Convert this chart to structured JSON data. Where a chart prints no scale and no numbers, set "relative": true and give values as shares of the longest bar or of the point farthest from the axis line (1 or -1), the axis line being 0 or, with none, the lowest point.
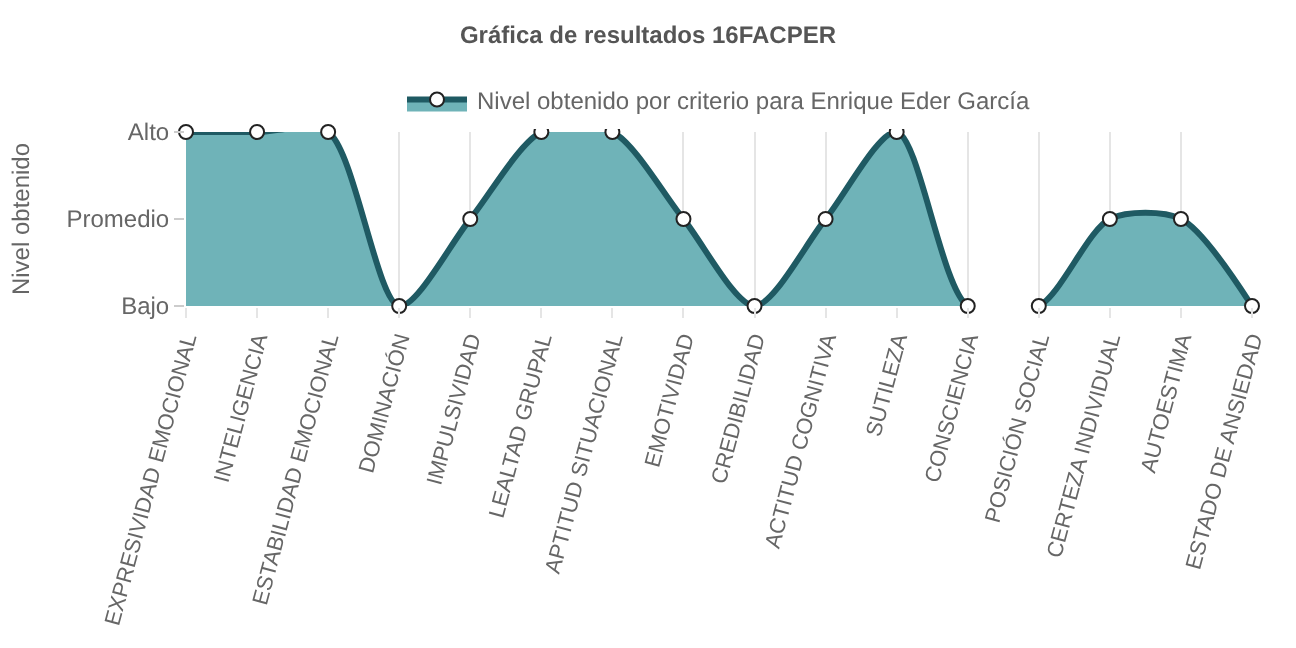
{
  "chart_data": {
    "type": "area",
    "title": "Gráfica de resultados 16FACPER",
    "ylabel": "Nivel obtenido",
    "categories": [
      "EXPRESIVIDAD EMOCIONAL",
      "INTELIGENCIA",
      "ESTABILIDAD EMOCIONAL",
      "DOMINACIÓN",
      "IMPULSIVIDAD",
      "LEALTAD GRUPAL",
      "APTITUD SITUACIONAL",
      "EMOTIVIDAD",
      "CREDIBILIDAD",
      "ACTITUD COGNITIVA",
      "SUTILEZA",
      "CONSCIENCIA",
      "POSICIÓN SOCIAL",
      "CERTEZA INDIVIDUAL",
      "AUTOESTIMA",
      "ESTADO DE ANSIEDAD"
    ],
    "y_categories": [
      "Alto",
      "Promedio",
      "Bajo"
    ],
    "relative": true,
    "series": [
      {
        "name": "Nivel obtenido por criterio para Enrique Eder García",
        "color": "#1f5a63",
        "values": [
          1,
          1,
          1,
          0,
          0.5,
          1,
          1,
          0.5,
          0,
          0.5,
          1,
          0,
          0,
          0.5,
          0.5,
          0
        ]
      }
    ],
    "grid": "x",
    "legend": "top",
    "marker": "circle",
    "line_style": "solid"
  }
}
